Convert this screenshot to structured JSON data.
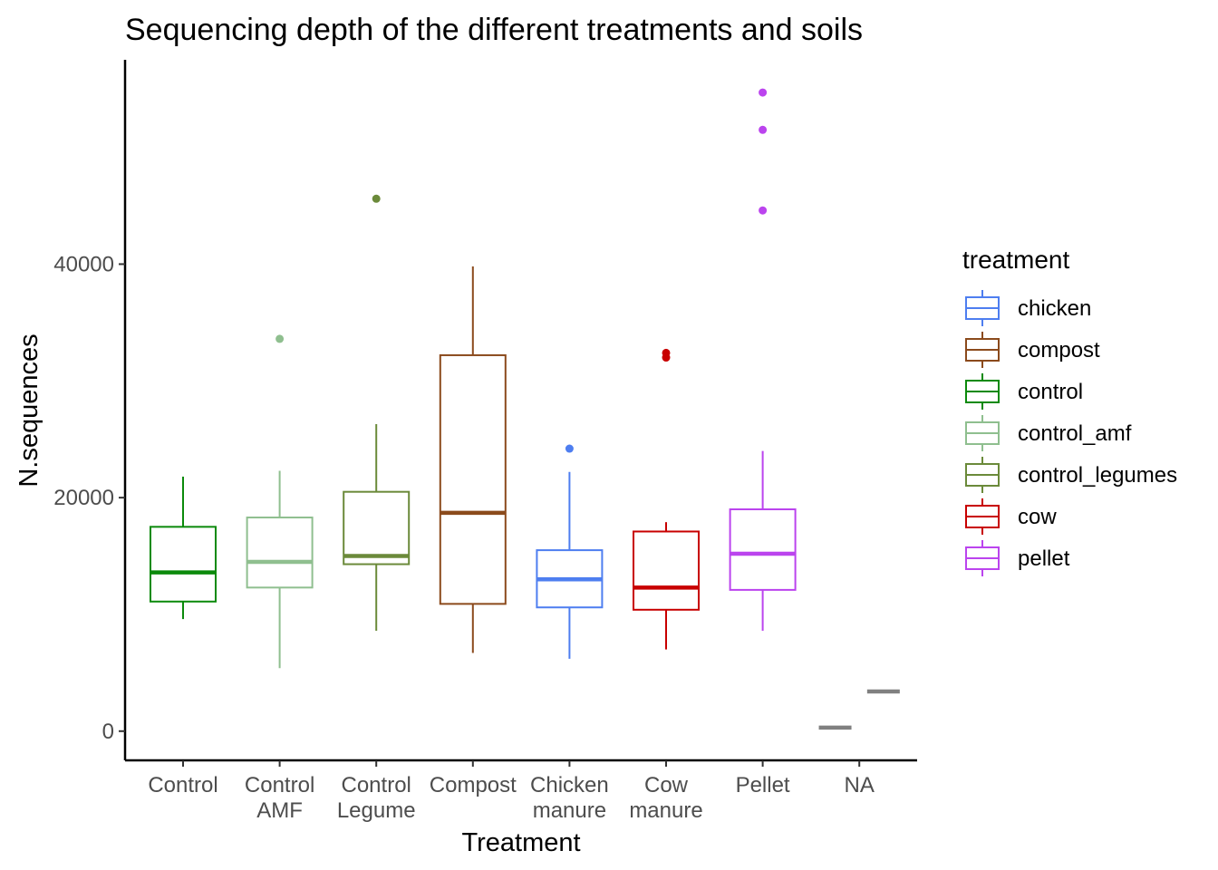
{
  "chart_data": {
    "type": "box",
    "title": "Sequencing depth of the different treatments and soils",
    "xlabel": "Treatment",
    "ylabel": "N.sequences",
    "ylim": [
      -2500,
      57500
    ],
    "yticks": [
      0,
      20000,
      40000
    ],
    "grid": false,
    "legend": {
      "title": "treatment",
      "position": "right",
      "entries": [
        {
          "label": "chicken",
          "color": "#4e7ef0"
        },
        {
          "label": "compost",
          "color": "#8b4a1c"
        },
        {
          "label": "control",
          "color": "#0b8a0b"
        },
        {
          "label": "control_amf",
          "color": "#8fbf8f"
        },
        {
          "label": "control_legumes",
          "color": "#6b8a3a"
        },
        {
          "label": "cow",
          "color": "#c80000"
        },
        {
          "label": "pellet",
          "color": "#bb44ee"
        }
      ]
    },
    "categories": [
      {
        "lines": [
          "Control"
        ]
      },
      {
        "lines": [
          "Control",
          "AMF"
        ]
      },
      {
        "lines": [
          "Control",
          "Legume"
        ]
      },
      {
        "lines": [
          "Compost"
        ]
      },
      {
        "lines": [
          "Chicken",
          "manure"
        ]
      },
      {
        "lines": [
          "Cow",
          "manure"
        ]
      },
      {
        "lines": [
          "Pellet"
        ]
      },
      {
        "lines": [
          "NA"
        ]
      }
    ],
    "boxes": [
      {
        "category": 0,
        "color": "#0b8a0b",
        "min": 9600,
        "q1": 11100,
        "median": 13600,
        "q3": 17500,
        "max": 21800,
        "outliers": []
      },
      {
        "category": 1,
        "color": "#8fbf8f",
        "min": 5400,
        "q1": 12300,
        "median": 14500,
        "q3": 18300,
        "max": 22300,
        "outliers": [
          33600
        ]
      },
      {
        "category": 2,
        "color": "#6b8a3a",
        "min": 8600,
        "q1": 14300,
        "median": 15000,
        "q3": 20500,
        "max": 26300,
        "outliers": [
          45600
        ]
      },
      {
        "category": 3,
        "color": "#8b4a1c",
        "min": 6700,
        "q1": 10900,
        "median": 18700,
        "q3": 32200,
        "max": 39800,
        "outliers": []
      },
      {
        "category": 4,
        "color": "#4e7ef0",
        "min": 6200,
        "q1": 10600,
        "median": 13000,
        "q3": 15500,
        "max": 22200,
        "outliers": [
          24200
        ]
      },
      {
        "category": 5,
        "color": "#c80000",
        "min": 7000,
        "q1": 10400,
        "median": 12300,
        "q3": 17100,
        "max": 17900,
        "outliers": [
          32000,
          32400
        ]
      },
      {
        "category": 6,
        "color": "#bb44ee",
        "min": 8600,
        "q1": 12100,
        "median": 15200,
        "q3": 19000,
        "max": 24000,
        "outliers": [
          44600,
          51500,
          54700
        ]
      }
    ],
    "na_segments": [
      {
        "category": 7,
        "offset": -0.25,
        "value": 300,
        "color": "#808080"
      },
      {
        "category": 7,
        "offset": 0.25,
        "value": 3400,
        "color": "#808080"
      }
    ]
  }
}
